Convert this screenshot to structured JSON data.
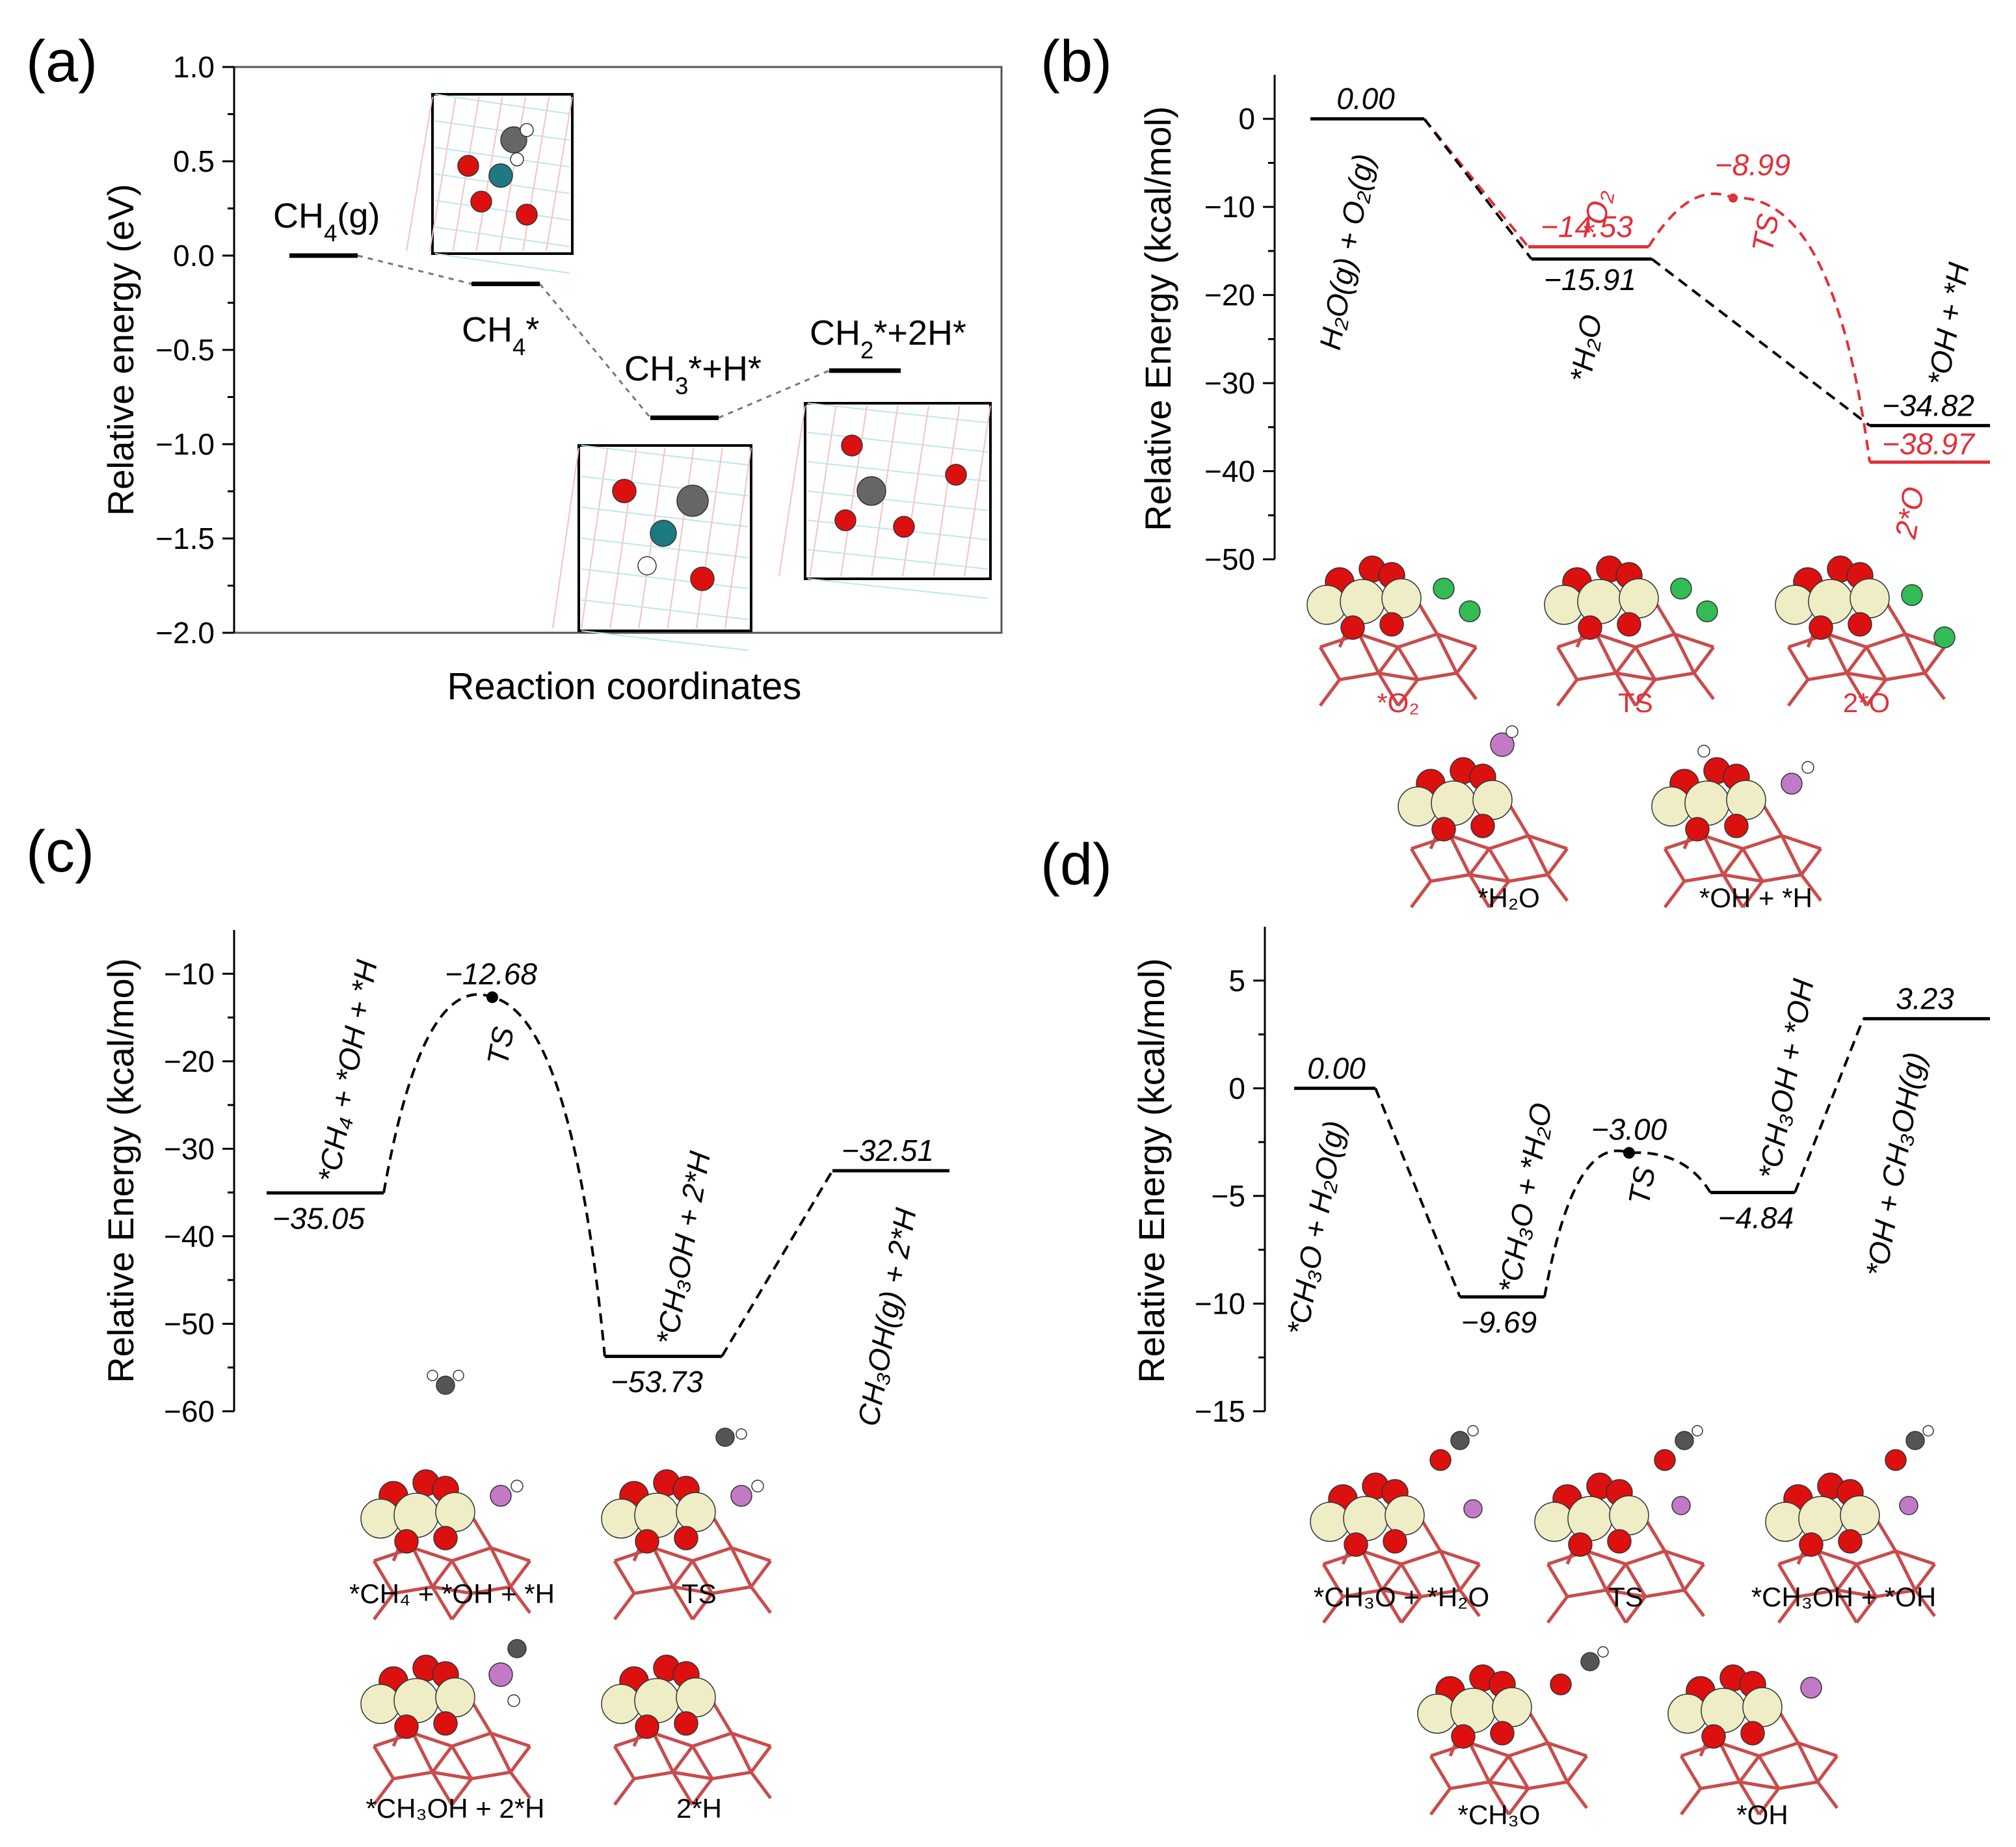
{
  "panels": {
    "a": {
      "panel_label": "(a)",
      "xlabel": "Reaction coordinates",
      "ylabel": "Relative energy (eV)",
      "ylim": [
        -2.0,
        1.0
      ],
      "yticks": [
        1.0,
        0.5,
        0.0,
        -0.5,
        -1.0,
        -1.5,
        -2.0
      ],
      "tick_labels": [
        "1.0",
        "0.5",
        "0.0",
        "−0.5",
        "−1.0",
        "−1.5",
        "−2.0"
      ],
      "levels": [
        {
          "species": "CH4(g)",
          "label_main": "CH",
          "label_sub": "4",
          "label_rest": "(g)",
          "energy": 0.0
        },
        {
          "species": "CH4*",
          "label_main": "CH",
          "label_sub": "4",
          "label_rest": "*",
          "energy": -0.15
        },
        {
          "species": "CH3*+H*",
          "label_main": "CH",
          "label_sub": "3",
          "label_rest": "*+H*",
          "energy": -0.86
        },
        {
          "species": "CH2*+2H*",
          "label_main": "CH",
          "label_sub": "2",
          "label_rest": "*+2H*",
          "energy": -0.61
        }
      ]
    },
    "b": {
      "panel_label": "(b)",
      "ylabel": "Relative Energy (kcal/mol)",
      "ylim": [
        -50,
        5
      ],
      "yticks": [
        0,
        -10,
        -20,
        -30,
        -40,
        -50
      ],
      "tick_labels": [
        "0",
        "−10",
        "−20",
        "−30",
        "−40",
        "−50"
      ],
      "black_path": {
        "levels": [
          {
            "species": "H2O(g) + O2(g)",
            "label": "H₂O(g) + O₂(g)",
            "energy": 0.0,
            "value_label": "0.00"
          },
          {
            "species": "*H2O",
            "label": "*H₂O",
            "energy": -15.91,
            "value_label": "−15.91"
          },
          {
            "species": "*OH + *H",
            "label": "*OH + *H",
            "energy": -34.82,
            "value_label": "−34.82"
          }
        ]
      },
      "red_path": {
        "levels": [
          {
            "species": "*O2",
            "label": "*O₂",
            "energy": -14.53,
            "value_label": "−14.53"
          },
          {
            "species": "TS",
            "label": "TS",
            "energy": -8.99,
            "value_label": "−8.99"
          },
          {
            "species": "2*O",
            "label": "2*O",
            "energy": -38.97,
            "value_label": "−38.97"
          }
        ]
      },
      "structure_captions": {
        "red": [
          "*O₂",
          "TS",
          "2*O"
        ],
        "black": [
          "*H₂O",
          "*OH + *H"
        ]
      }
    },
    "c": {
      "panel_label": "(c)",
      "ylabel": "Relative Energy (kcal/mol)",
      "ylim": [
        -60,
        -5
      ],
      "yticks": [
        -10,
        -20,
        -30,
        -40,
        -50,
        -60
      ],
      "tick_labels": [
        "−10",
        "−20",
        "−30",
        "−40",
        "−50",
        "−60"
      ],
      "levels": [
        {
          "species": "*CH4 + *OH + *H",
          "label": "*CH₄ + *OH + *H",
          "energy": -35.05,
          "value_label": "−35.05"
        },
        {
          "species": "TS",
          "label": "TS",
          "energy": -12.68,
          "value_label": "−12.68"
        },
        {
          "species": "*CH3OH + 2*H",
          "label": "*CH₃OH + 2*H",
          "energy": -53.73,
          "value_label": "−53.73"
        },
        {
          "species": "CH3OH(g) + 2*H",
          "label": "CH₃OH(g) + 2*H",
          "energy": -32.51,
          "value_label": "−32.51"
        }
      ],
      "structure_captions": [
        "*CH₄ + *OH + *H",
        "TS",
        "*CH₃OH + 2*H",
        "2*H"
      ]
    },
    "d": {
      "panel_label": "(d)",
      "ylabel": "Relative Energy (kcal/mol)",
      "ylim": [
        -15,
        7.5
      ],
      "yticks": [
        5,
        0,
        -5,
        -10,
        -15
      ],
      "tick_labels": [
        "5",
        "0",
        "−5",
        "−10",
        "−15"
      ],
      "levels": [
        {
          "species": "*CH3O + H2O(g)",
          "label": "*CH₃O + H₂O(g)",
          "energy": 0.0,
          "value_label": "0.00"
        },
        {
          "species": "*CH3O + *H2O",
          "label": "*CH₃O + *H₂O",
          "energy": -9.69,
          "value_label": "−9.69"
        },
        {
          "species": "TS",
          "label": "TS",
          "energy": -3.0,
          "value_label": "−3.00"
        },
        {
          "species": "*CH3OH + *OH",
          "label": "*CH₃OH + *OH",
          "energy": -4.84,
          "value_label": "−4.84"
        },
        {
          "species": "*OH + CH3OH(g)",
          "label": "*OH + CH₃OH(g)",
          "energy": 3.23,
          "value_label": "3.23"
        }
      ],
      "structure_captions": [
        "*CH₃O + *H₂O",
        "TS",
        "*CH₃OH + *OH",
        "*CH₃O",
        "*OH"
      ]
    }
  },
  "colors": {
    "black_path": "#000000",
    "red_path": "#e0303a",
    "oxygen": "#dd1010",
    "metal": "#eeedc6",
    "carbon": "#555555",
    "hydrogen": "#f2f2f2",
    "adsorbed_h": "#c27ac6",
    "green_o": "#33bb55",
    "surface": "#c84c4c",
    "metal_a": "#1e7a82"
  },
  "chart_data": [
    {
      "type": "line",
      "panel": "(a)",
      "x": [
        "CH4(g)",
        "CH4*",
        "CH3*+H*",
        "CH2*+2H*"
      ],
      "values": [
        0.0,
        -0.15,
        -0.86,
        -0.61
      ],
      "xlabel": "Reaction coordinates",
      "ylabel": "Relative energy (eV)",
      "ylim": [
        -2.0,
        1.0
      ]
    },
    {
      "type": "line",
      "panel": "(b)",
      "series": [
        {
          "values": [
            0.0,
            -15.91,
            -34.82
          ],
          "x": [
            "H2O(g) + O2(g)",
            "*H2O",
            "*OH + *H"
          ]
        },
        {
          "values": [
            0.0,
            -14.53,
            -8.99,
            -38.97
          ],
          "x": [
            "H2O(g) + O2(g)",
            "*O2",
            "TS",
            "2*O"
          ]
        }
      ],
      "ylabel": "Relative Energy (kcal/mol)",
      "ylim": [
        -50,
        5
      ]
    },
    {
      "type": "line",
      "panel": "(c)",
      "x": [
        "*CH4 + *OH + *H",
        "TS",
        "*CH3OH + 2*H",
        "CH3OH(g) + 2*H"
      ],
      "values": [
        -35.05,
        -12.68,
        -53.73,
        -32.51
      ],
      "ylabel": "Relative Energy (kcal/mol)",
      "ylim": [
        -60,
        -5
      ]
    },
    {
      "type": "line",
      "panel": "(d)",
      "x": [
        "*CH3O + H2O(g)",
        "*CH3O + *H2O",
        "TS",
        "*CH3OH + *OH",
        "*OH + CH3OH(g)"
      ],
      "values": [
        0.0,
        -9.69,
        -3.0,
        -4.84,
        3.23
      ],
      "ylabel": "Relative Energy (kcal/mol)",
      "ylim": [
        -15,
        7.5
      ]
    }
  ]
}
